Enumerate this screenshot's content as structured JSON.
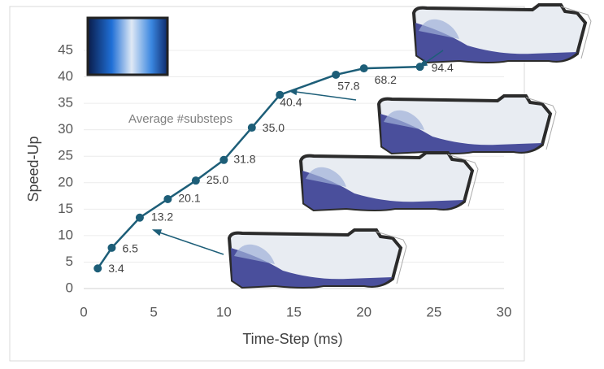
{
  "chart_data": {
    "type": "line",
    "x_label": "Time-Step (ms)",
    "y_label": "Speed-Up",
    "annotation": "Average #substeps",
    "x": [
      1,
      2,
      4,
      6,
      8,
      10,
      12,
      14,
      18,
      20,
      24
    ],
    "series": [
      {
        "name": "Speed-Up",
        "color": "#1d5e78",
        "values": [
          3.8,
          7.7,
          13.4,
          16.9,
          20.4,
          24.3,
          30.4,
          36.6,
          40.4,
          41.6,
          41.9
        ]
      }
    ],
    "substeps": [
      3.4,
      6.5,
      13.2,
      20.1,
      {
        "value": 25,
        "label": "25.0"
      },
      31.8,
      {
        "value": 35,
        "label": "35.0"
      },
      40.4,
      57.8,
      68.2,
      94.4
    ],
    "xlim": [
      0,
      30
    ],
    "xticks": [
      0,
      5,
      10,
      15,
      20,
      25,
      30
    ],
    "ylim": [
      0,
      45
    ],
    "yticks": [
      0,
      5,
      10,
      15,
      20,
      25,
      30,
      35,
      40,
      45
    ],
    "grid": true
  }
}
